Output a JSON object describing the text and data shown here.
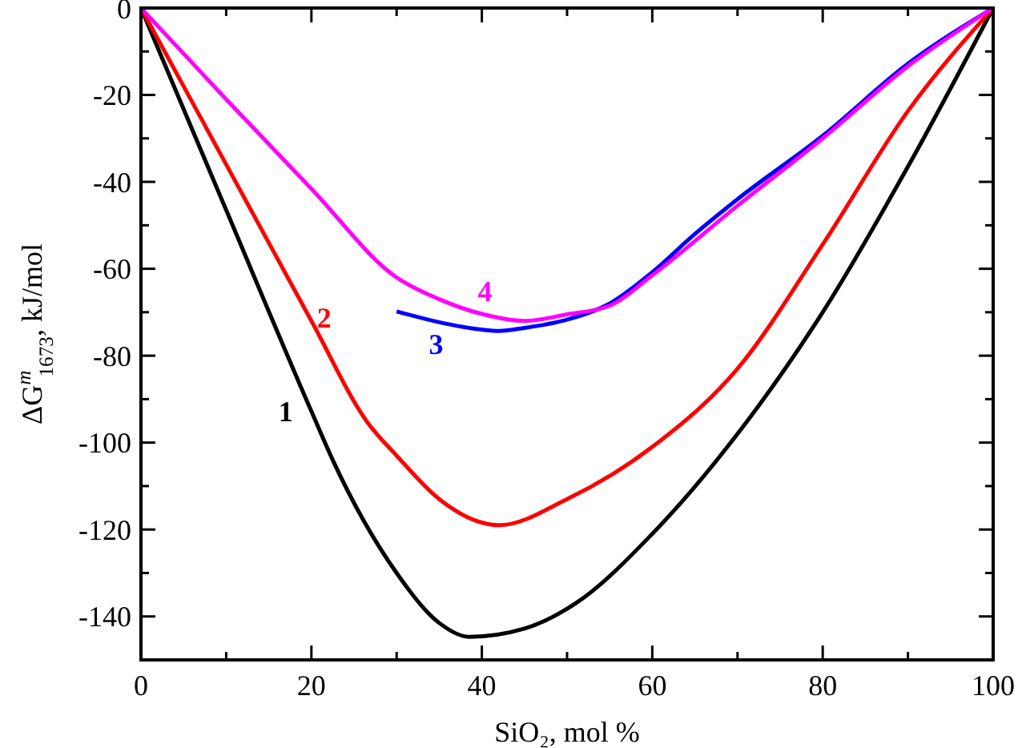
{
  "chart_data": {
    "type": "line",
    "xlabel": "SiO₂, mol %",
    "ylabel": "ΔG$^{m}$$_{1673}$, kJ/mol",
    "xlim": [
      0,
      100
    ],
    "ylim": [
      -150,
      0
    ],
    "xticks": [
      0,
      {
        "value": 10,
        "label": null
      },
      20,
      {
        "value": 30,
        "label": null
      },
      40,
      {
        "value": 50,
        "label": null
      },
      60,
      {
        "value": 70,
        "label": null
      },
      80,
      {
        "value": 90,
        "label": null
      },
      100
    ],
    "yticks": [
      -140,
      {
        "value": -130,
        "label": null
      },
      -120,
      {
        "value": -110,
        "label": null
      },
      -100,
      {
        "value": -90,
        "label": null
      },
      -80,
      {
        "value": -70,
        "label": null
      },
      -60,
      {
        "value": -50,
        "label": null
      },
      -40,
      {
        "value": -30,
        "label": null
      },
      -20,
      {
        "value": -10,
        "label": null
      },
      0
    ],
    "grid": false,
    "marker": "none",
    "line_style": "solid",
    "series": [
      {
        "name": "1",
        "color": "#000000",
        "x": [
          0,
          10,
          20,
          22.5,
          30,
          35,
          38.5,
          45,
          51,
          60,
          70,
          80,
          90,
          100
        ],
        "values": [
          0,
          -46.5,
          -92.8,
          -104,
          -130,
          -141.5,
          -144.7,
          -142.8,
          -137,
          -121,
          -98,
          -70,
          -36.5,
          0
        ]
      },
      {
        "name": "2",
        "color": "#ff0000",
        "x": [
          0,
          10,
          20,
          26.6,
          30,
          35,
          40,
          42,
          50,
          60,
          70,
          80,
          90,
          100
        ],
        "values": [
          0,
          -36,
          -72,
          -95.4,
          -103,
          -113,
          -118.4,
          -119,
          -113,
          -101,
          -83,
          -54.4,
          -23.7,
          0
        ]
      },
      {
        "name": "3",
        "color": "#0000ff",
        "x": [
          30,
          35,
          40,
          42,
          45,
          50,
          55,
          60,
          65,
          70,
          80,
          90,
          100
        ],
        "values": [
          -69.8,
          -72.3,
          -74,
          -74.3,
          -73.6,
          -71.7,
          -68,
          -60.8,
          -52,
          -44,
          -29.4,
          -12.8,
          0
        ]
      },
      {
        "name": "4",
        "color": "#ff00ff",
        "x": [
          0,
          10,
          20,
          30,
          35,
          40,
          45,
          50,
          55,
          60,
          70,
          80,
          90,
          100
        ],
        "values": [
          0,
          -21,
          -41.6,
          -62,
          -67,
          -70.4,
          -72,
          -70.5,
          -68.5,
          -61.5,
          -45.5,
          -30,
          -13.4,
          0
        ]
      }
    ]
  }
}
